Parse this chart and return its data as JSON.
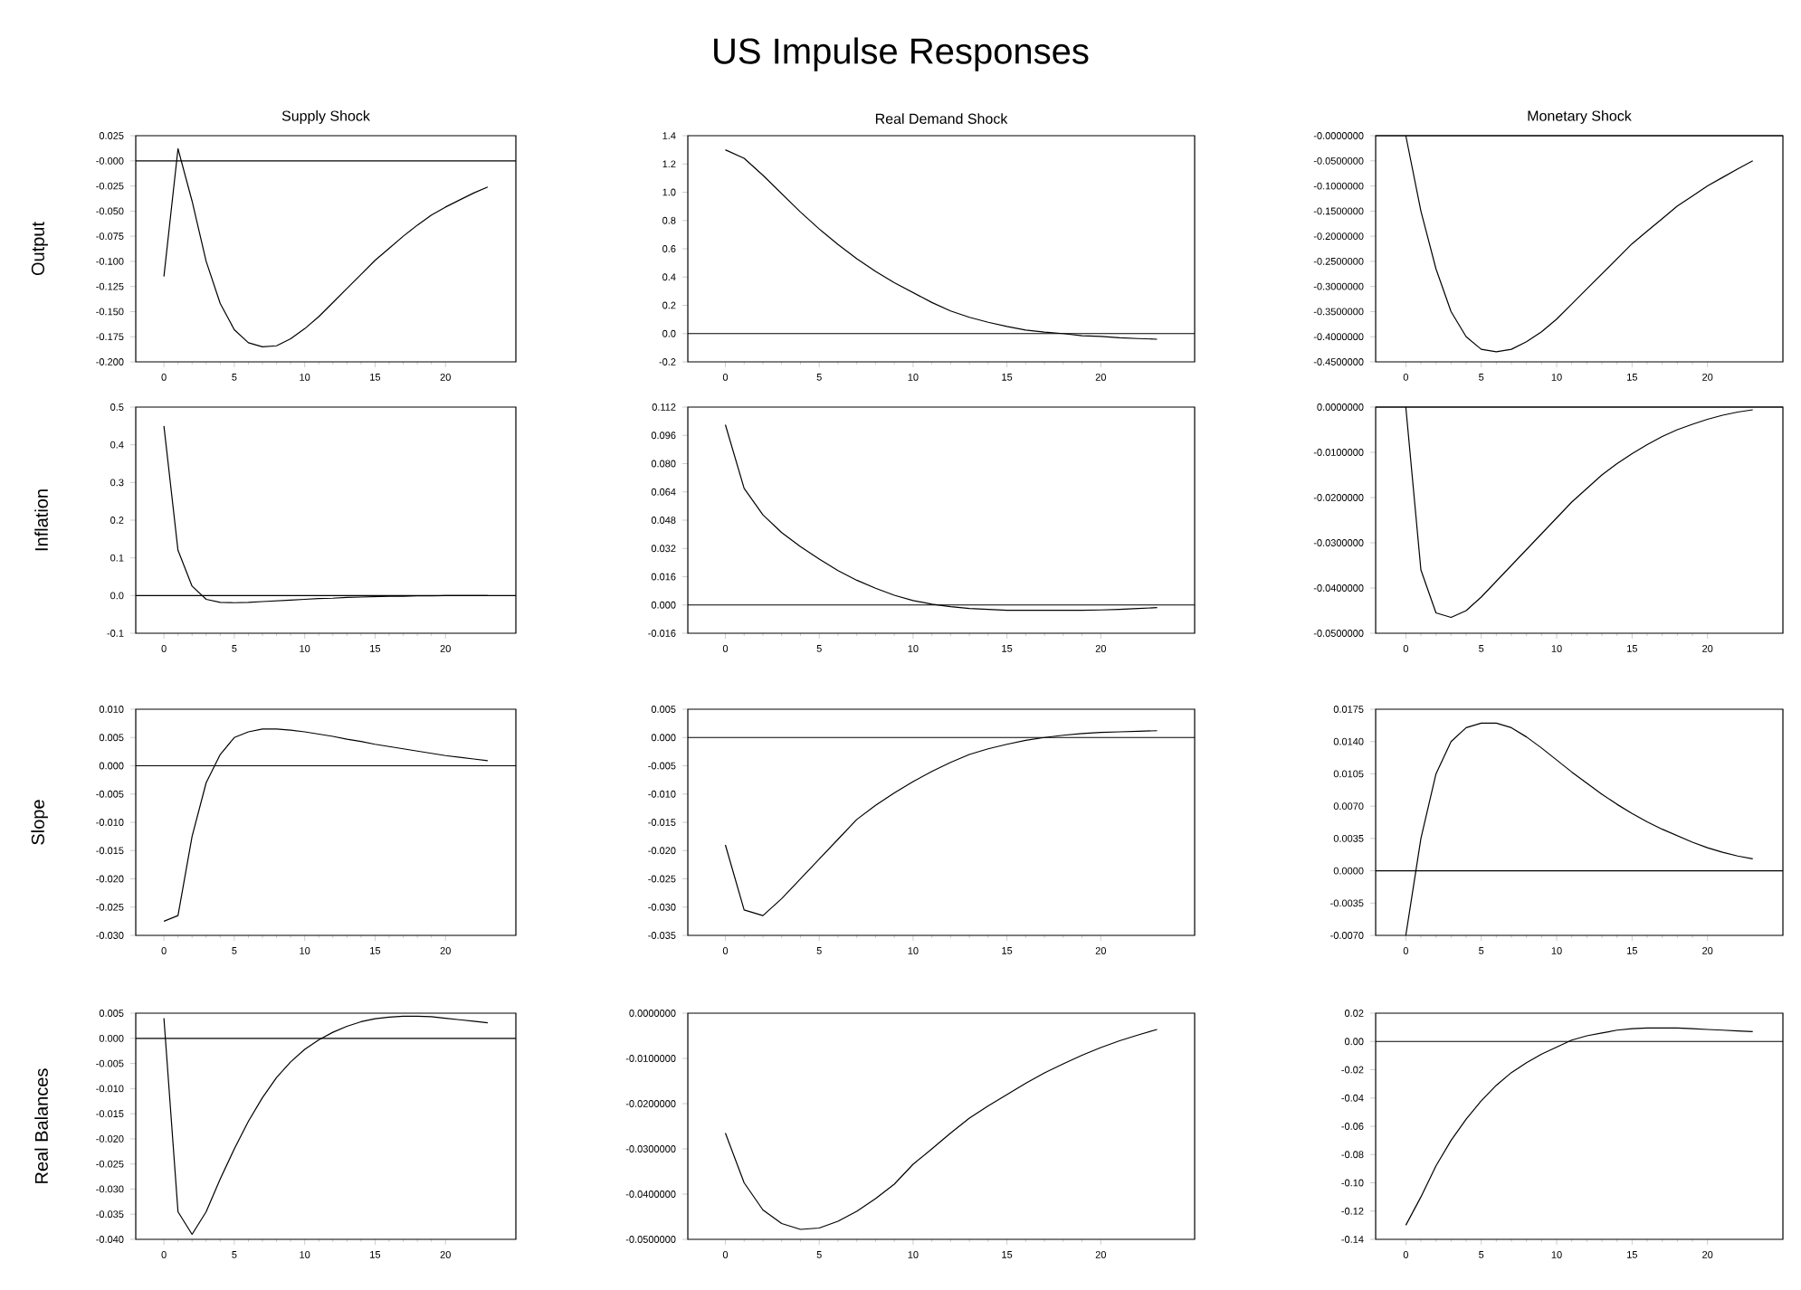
{
  "chart_data": [
    {
      "type": "line",
      "title": "Supply Shock",
      "ylabel": "Output",
      "annotations": [
        "US Impulse Responses"
      ],
      "color": "#000000",
      "x": [
        0,
        1,
        2,
        3,
        4,
        5,
        6,
        7,
        8,
        9,
        10,
        11,
        12,
        13,
        14,
        15,
        16,
        17,
        18,
        19,
        20,
        21,
        22,
        23
      ],
      "values": [
        -0.115,
        0.012,
        -0.04,
        -0.1,
        -0.142,
        -0.168,
        -0.181,
        -0.185,
        -0.184,
        -0.177,
        -0.167,
        -0.155,
        -0.141,
        -0.127,
        -0.113,
        -0.099,
        -0.087,
        -0.075,
        -0.064,
        -0.054,
        -0.046,
        -0.039,
        -0.032,
        -0.026
      ],
      "xlim": [
        -2,
        25
      ],
      "xticks": [
        0,
        5,
        10,
        15,
        20
      ],
      "ylim": [
        -0.2,
        0.025
      ],
      "yticks": [
        {
          "value": 0.025,
          "label": "0.025"
        },
        {
          "value": 0,
          "label": "-0.000"
        },
        {
          "value": -0.025,
          "label": "-0.025"
        },
        {
          "value": -0.05,
          "label": "-0.050"
        },
        {
          "value": -0.075,
          "label": "-0.075"
        },
        {
          "value": -0.1,
          "label": "-0.100"
        },
        {
          "value": -0.125,
          "label": "-0.125"
        },
        {
          "value": -0.15,
          "label": "-0.150"
        },
        {
          "value": -0.175,
          "label": "-0.175"
        },
        {
          "value": -0.2,
          "label": "-0.200"
        }
      ],
      "ref_lines": [
        {
          "axis": "y",
          "value": 0
        }
      ]
    },
    {
      "type": "line",
      "title": "Real Demand Shock",
      "color": "#000000",
      "x": [
        0,
        1,
        2,
        3,
        4,
        5,
        6,
        7,
        8,
        9,
        10,
        11,
        12,
        13,
        14,
        15,
        16,
        17,
        18,
        19,
        20,
        21,
        22,
        23
      ],
      "values": [
        1.3,
        1.24,
        1.12,
        0.99,
        0.86,
        0.74,
        0.63,
        0.53,
        0.44,
        0.36,
        0.29,
        0.22,
        0.16,
        0.115,
        0.08,
        0.05,
        0.025,
        0.01,
        0.0,
        -0.015,
        -0.02,
        -0.03,
        -0.035,
        -0.04
      ],
      "xlim": [
        -2,
        25
      ],
      "xticks": [
        0,
        5,
        10,
        15,
        20
      ],
      "ylim": [
        -0.2,
        1.4
      ],
      "yticks": [
        {
          "value": 1.4,
          "label": "1.4"
        },
        {
          "value": 1.2,
          "label": "1.2"
        },
        {
          "value": 1.0,
          "label": "1.0"
        },
        {
          "value": 0.8,
          "label": "0.8"
        },
        {
          "value": 0.6,
          "label": "0.6"
        },
        {
          "value": 0.4,
          "label": "0.4"
        },
        {
          "value": 0.2,
          "label": "0.2"
        },
        {
          "value": 0,
          "label": "0.0"
        },
        {
          "value": -0.2,
          "label": "-0.2"
        }
      ],
      "ref_lines": [
        {
          "axis": "y",
          "value": 0
        }
      ]
    },
    {
      "type": "line",
      "title": "Monetary Shock",
      "color": "#000000",
      "x": [
        0,
        1,
        2,
        3,
        4,
        5,
        6,
        7,
        8,
        9,
        10,
        11,
        12,
        13,
        14,
        15,
        16,
        17,
        18,
        19,
        20,
        21,
        22,
        23
      ],
      "values": [
        0.0,
        -0.15,
        -0.265,
        -0.35,
        -0.4,
        -0.425,
        -0.43,
        -0.425,
        -0.41,
        -0.39,
        -0.365,
        -0.335,
        -0.305,
        -0.275,
        -0.245,
        -0.215,
        -0.19,
        -0.165,
        -0.14,
        -0.12,
        -0.1,
        -0.083,
        -0.066,
        -0.05
      ],
      "xlim": [
        -2,
        25
      ],
      "xticks": [
        0,
        5,
        10,
        15,
        20
      ],
      "ylim": [
        -0.45,
        0
      ],
      "yticks": [
        {
          "value": 0,
          "label": "-0.0000000"
        },
        {
          "value": -0.05,
          "label": "-0.0500000"
        },
        {
          "value": -0.1,
          "label": "-0.1000000"
        },
        {
          "value": -0.15,
          "label": "-0.1500000"
        },
        {
          "value": -0.2,
          "label": "-0.2000000"
        },
        {
          "value": -0.25,
          "label": "-0.2500000"
        },
        {
          "value": -0.3,
          "label": "-0.3000000"
        },
        {
          "value": -0.35,
          "label": "-0.3500000"
        },
        {
          "value": -0.4,
          "label": "-0.4000000"
        },
        {
          "value": -0.45,
          "label": "-0.4500000"
        }
      ],
      "ref_lines": [
        {
          "axis": "y",
          "value": 0
        }
      ]
    },
    {
      "type": "line",
      "ylabel": "Inflation",
      "color": "#000000",
      "x": [
        0,
        1,
        2,
        3,
        4,
        5,
        6,
        7,
        8,
        9,
        10,
        11,
        12,
        13,
        14,
        15,
        16,
        17,
        18,
        19,
        20,
        21,
        22,
        23
      ],
      "values": [
        0.45,
        0.12,
        0.025,
        -0.01,
        -0.018,
        -0.019,
        -0.018,
        -0.016,
        -0.014,
        -0.012,
        -0.01,
        -0.008,
        -0.007,
        -0.005,
        -0.004,
        -0.003,
        -0.002,
        -0.002,
        -0.001,
        -0.001,
        0,
        0,
        0,
        0
      ],
      "xlim": [
        -2,
        25
      ],
      "xticks": [
        0,
        5,
        10,
        15,
        20
      ],
      "ylim": [
        -0.1,
        0.5
      ],
      "yticks": [
        {
          "value": 0.5,
          "label": "0.5"
        },
        {
          "value": 0.4,
          "label": "0.4"
        },
        {
          "value": 0.3,
          "label": "0.3"
        },
        {
          "value": 0.2,
          "label": "0.2"
        },
        {
          "value": 0.1,
          "label": "0.1"
        },
        {
          "value": 0,
          "label": "0.0"
        },
        {
          "value": -0.1,
          "label": "-0.1"
        }
      ],
      "ref_lines": [
        {
          "axis": "y",
          "value": 0
        }
      ]
    },
    {
      "type": "line",
      "color": "#000000",
      "x": [
        0,
        1,
        2,
        3,
        4,
        5,
        6,
        7,
        8,
        9,
        10,
        11,
        12,
        13,
        14,
        15,
        16,
        17,
        18,
        19,
        20,
        21,
        22,
        23
      ],
      "values": [
        0.102,
        0.066,
        0.051,
        0.041,
        0.033,
        0.026,
        0.0195,
        0.014,
        0.0095,
        0.0055,
        0.0025,
        0.0005,
        -0.001,
        -0.002,
        -0.0025,
        -0.003,
        -0.003,
        -0.003,
        -0.003,
        -0.003,
        -0.0028,
        -0.0025,
        -0.002,
        -0.0015
      ],
      "xlim": [
        -2,
        25
      ],
      "xticks": [
        0,
        5,
        10,
        15,
        20
      ],
      "ylim": [
        -0.016,
        0.112
      ],
      "yticks": [
        {
          "value": 0.112,
          "label": "0.112"
        },
        {
          "value": 0.096,
          "label": "0.096"
        },
        {
          "value": 0.08,
          "label": "0.080"
        },
        {
          "value": 0.064,
          "label": "0.064"
        },
        {
          "value": 0.048,
          "label": "0.048"
        },
        {
          "value": 0.032,
          "label": "0.032"
        },
        {
          "value": 0.016,
          "label": "0.016"
        },
        {
          "value": 0,
          "label": "0.000"
        },
        {
          "value": -0.016,
          "label": "-0.016"
        }
      ],
      "ref_lines": [
        {
          "axis": "y",
          "value": 0
        }
      ]
    },
    {
      "type": "line",
      "color": "#000000",
      "x": [
        0,
        1,
        2,
        3,
        4,
        5,
        6,
        7,
        8,
        9,
        10,
        11,
        12,
        13,
        14,
        15,
        16,
        17,
        18,
        19,
        20,
        21,
        22,
        23
      ],
      "values": [
        0.0,
        -0.036,
        -0.0455,
        -0.0465,
        -0.045,
        -0.042,
        -0.0385,
        -0.035,
        -0.0315,
        -0.028,
        -0.0245,
        -0.021,
        -0.018,
        -0.015,
        -0.0125,
        -0.0103,
        -0.0083,
        -0.0065,
        -0.005,
        -0.0038,
        -0.0027,
        -0.0018,
        -0.0011,
        -0.0006
      ],
      "xlim": [
        -2,
        25
      ],
      "xticks": [
        0,
        5,
        10,
        15,
        20
      ],
      "ylim": [
        -0.05,
        0
      ],
      "yticks": [
        {
          "value": 0,
          "label": "0.0000000"
        },
        {
          "value": -0.01,
          "label": "-0.0100000"
        },
        {
          "value": -0.02,
          "label": "-0.0200000"
        },
        {
          "value": -0.03,
          "label": "-0.0300000"
        },
        {
          "value": -0.04,
          "label": "-0.0400000"
        },
        {
          "value": -0.05,
          "label": "-0.0500000"
        }
      ],
      "ref_lines": [
        {
          "axis": "y",
          "value": 0
        }
      ]
    },
    {
      "type": "line",
      "ylabel": "Slope",
      "color": "#000000",
      "x": [
        0,
        1,
        2,
        3,
        4,
        5,
        6,
        7,
        8,
        9,
        10,
        11,
        12,
        13,
        14,
        15,
        16,
        17,
        18,
        19,
        20,
        21,
        22,
        23
      ],
      "values": [
        -0.0275,
        -0.0265,
        -0.0125,
        -0.003,
        0.002,
        0.005,
        0.006,
        0.0065,
        0.0065,
        0.0063,
        0.006,
        0.0056,
        0.0052,
        0.0047,
        0.0043,
        0.0038,
        0.0034,
        0.003,
        0.0026,
        0.0022,
        0.0018,
        0.0015,
        0.0012,
        0.0009
      ],
      "xlim": [
        -2,
        25
      ],
      "xticks": [
        0,
        5,
        10,
        15,
        20
      ],
      "ylim": [
        -0.03,
        0.01
      ],
      "yticks": [
        {
          "value": 0.01,
          "label": "0.010"
        },
        {
          "value": 0.005,
          "label": "0.005"
        },
        {
          "value": 0,
          "label": "0.000"
        },
        {
          "value": -0.005,
          "label": "-0.005"
        },
        {
          "value": -0.01,
          "label": "-0.010"
        },
        {
          "value": -0.015,
          "label": "-0.015"
        },
        {
          "value": -0.02,
          "label": "-0.020"
        },
        {
          "value": -0.025,
          "label": "-0.025"
        },
        {
          "value": -0.03,
          "label": "-0.030"
        }
      ],
      "ref_lines": [
        {
          "axis": "y",
          "value": 0
        }
      ]
    },
    {
      "type": "line",
      "color": "#000000",
      "x": [
        0,
        1,
        2,
        3,
        4,
        5,
        6,
        7,
        8,
        9,
        10,
        11,
        12,
        13,
        14,
        15,
        16,
        17,
        18,
        19,
        20,
        21,
        22,
        23
      ],
      "values": [
        -0.019,
        -0.0305,
        -0.0315,
        -0.0285,
        -0.025,
        -0.0215,
        -0.018,
        -0.0145,
        -0.012,
        -0.0098,
        -0.0078,
        -0.006,
        -0.0044,
        -0.003,
        -0.002,
        -0.0012,
        -0.0005,
        0.0,
        0.0004,
        0.0007,
        0.0009,
        0.001,
        0.0011,
        0.0012
      ],
      "xlim": [
        -2,
        25
      ],
      "xticks": [
        0,
        5,
        10,
        15,
        20
      ],
      "ylim": [
        -0.035,
        0.005
      ],
      "yticks": [
        {
          "value": 0.005,
          "label": "0.005"
        },
        {
          "value": 0,
          "label": "0.000"
        },
        {
          "value": -0.005,
          "label": "-0.005"
        },
        {
          "value": -0.01,
          "label": "-0.010"
        },
        {
          "value": -0.015,
          "label": "-0.015"
        },
        {
          "value": -0.02,
          "label": "-0.020"
        },
        {
          "value": -0.025,
          "label": "-0.025"
        },
        {
          "value": -0.03,
          "label": "-0.030"
        },
        {
          "value": -0.035,
          "label": "-0.035"
        }
      ],
      "ref_lines": [
        {
          "axis": "y",
          "value": 0
        }
      ]
    },
    {
      "type": "line",
      "color": "#000000",
      "x": [
        0,
        1,
        2,
        3,
        4,
        5,
        6,
        7,
        8,
        9,
        10,
        11,
        12,
        13,
        14,
        15,
        16,
        17,
        18,
        19,
        20,
        21,
        22,
        23
      ],
      "values": [
        -0.007,
        0.0035,
        0.0105,
        0.014,
        0.0155,
        0.016,
        0.016,
        0.0155,
        0.0145,
        0.0133,
        0.012,
        0.0107,
        0.0095,
        0.0083,
        0.0072,
        0.0062,
        0.0053,
        0.0045,
        0.0038,
        0.0031,
        0.0025,
        0.002,
        0.0016,
        0.0013
      ],
      "xlim": [
        -2,
        25
      ],
      "xticks": [
        0,
        5,
        10,
        15,
        20
      ],
      "ylim": [
        -0.007,
        0.0175
      ],
      "yticks": [
        {
          "value": 0.0175,
          "label": "0.0175"
        },
        {
          "value": 0.014,
          "label": "0.0140"
        },
        {
          "value": 0.0105,
          "label": "0.0105"
        },
        {
          "value": 0.007,
          "label": "0.0070"
        },
        {
          "value": 0.0035,
          "label": "0.0035"
        },
        {
          "value": 0,
          "label": "0.0000"
        },
        {
          "value": -0.0035,
          "label": "-0.0035"
        },
        {
          "value": -0.007,
          "label": "-0.0070"
        }
      ],
      "ref_lines": [
        {
          "axis": "y",
          "value": 0
        }
      ]
    },
    {
      "type": "line",
      "ylabel": "Real Balances",
      "color": "#000000",
      "x": [
        0,
        1,
        2,
        3,
        4,
        5,
        6,
        7,
        8,
        9,
        10,
        11,
        12,
        13,
        14,
        15,
        16,
        17,
        18,
        19,
        20,
        21,
        22,
        23
      ],
      "values": [
        0.004,
        -0.0345,
        -0.039,
        -0.0345,
        -0.028,
        -0.022,
        -0.0165,
        -0.0118,
        -0.0078,
        -0.0047,
        -0.0022,
        -0.0003,
        0.0012,
        0.0024,
        0.0033,
        0.0039,
        0.0042,
        0.0044,
        0.0044,
        0.0043,
        0.004,
        0.0037,
        0.0034,
        0.0031
      ],
      "xlim": [
        -2,
        25
      ],
      "xticks": [
        0,
        5,
        10,
        15,
        20
      ],
      "ylim": [
        -0.04,
        0.005
      ],
      "yticks": [
        {
          "value": 0.005,
          "label": "0.005"
        },
        {
          "value": 0,
          "label": "0.000"
        },
        {
          "value": -0.005,
          "label": "-0.005"
        },
        {
          "value": -0.01,
          "label": "-0.010"
        },
        {
          "value": -0.015,
          "label": "-0.015"
        },
        {
          "value": -0.02,
          "label": "-0.020"
        },
        {
          "value": -0.025,
          "label": "-0.025"
        },
        {
          "value": -0.03,
          "label": "-0.030"
        },
        {
          "value": -0.035,
          "label": "-0.035"
        },
        {
          "value": -0.04,
          "label": "-0.040"
        }
      ],
      "ref_lines": [
        {
          "axis": "y",
          "value": 0
        }
      ]
    },
    {
      "type": "line",
      "color": "#000000",
      "x": [
        0,
        1,
        2,
        3,
        4,
        5,
        6,
        7,
        8,
        9,
        10,
        11,
        12,
        13,
        14,
        15,
        16,
        17,
        18,
        19,
        20,
        21,
        22,
        23
      ],
      "values": [
        -0.0265,
        -0.0375,
        -0.0435,
        -0.0465,
        -0.0478,
        -0.0475,
        -0.046,
        -0.0438,
        -0.041,
        -0.0378,
        -0.0334,
        -0.03,
        -0.0265,
        -0.0232,
        -0.0205,
        -0.018,
        -0.0155,
        -0.0132,
        -0.0112,
        -0.0093,
        -0.0076,
        -0.0061,
        -0.0048,
        -0.0036
      ],
      "xlim": [
        -2,
        25
      ],
      "xticks": [
        0,
        5,
        10,
        15,
        20
      ],
      "ylim": [
        -0.05,
        0
      ],
      "yticks": [
        {
          "value": 0,
          "label": "0.0000000"
        },
        {
          "value": -0.01,
          "label": "-0.0100000"
        },
        {
          "value": -0.02,
          "label": "-0.0200000"
        },
        {
          "value": -0.03,
          "label": "-0.0300000"
        },
        {
          "value": -0.04,
          "label": "-0.0400000"
        },
        {
          "value": -0.05,
          "label": "-0.0500000"
        }
      ]
    },
    {
      "type": "line",
      "color": "#000000",
      "x": [
        0,
        1,
        2,
        3,
        4,
        5,
        6,
        7,
        8,
        9,
        10,
        11,
        12,
        13,
        14,
        15,
        16,
        17,
        18,
        19,
        20,
        21,
        22,
        23
      ],
      "values": [
        -0.13,
        -0.11,
        -0.088,
        -0.07,
        -0.055,
        -0.042,
        -0.031,
        -0.022,
        -0.015,
        -0.009,
        -0.004,
        0.001,
        0.004,
        0.006,
        0.008,
        0.009,
        0.0095,
        0.0095,
        0.0095,
        0.009,
        0.0085,
        0.008,
        0.0075,
        0.007
      ],
      "xlim": [
        -2,
        25
      ],
      "xticks": [
        0,
        5,
        10,
        15,
        20
      ],
      "ylim": [
        -0.14,
        0.02
      ],
      "yticks": [
        {
          "value": 0.02,
          "label": "0.02"
        },
        {
          "value": 0,
          "label": "0.00"
        },
        {
          "value": -0.02,
          "label": "-0.02"
        },
        {
          "value": -0.04,
          "label": "-0.04"
        },
        {
          "value": -0.06,
          "label": "-0.06"
        },
        {
          "value": -0.08,
          "label": "-0.08"
        },
        {
          "value": -0.1,
          "label": "-0.10"
        },
        {
          "value": -0.12,
          "label": "-0.12"
        },
        {
          "value": -0.14,
          "label": "-0.14"
        }
      ],
      "ref_lines": [
        {
          "axis": "y",
          "value": 0
        }
      ]
    }
  ]
}
